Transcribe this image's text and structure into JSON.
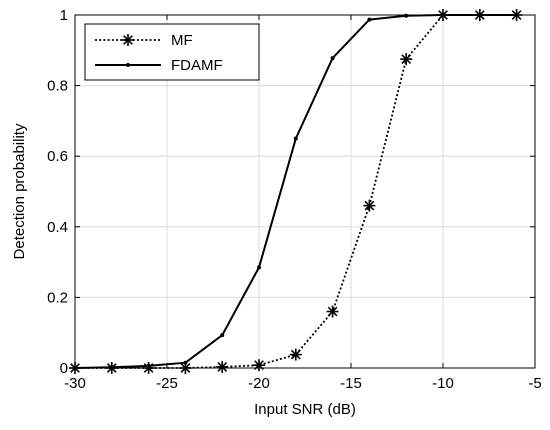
{
  "chart_data": {
    "type": "line",
    "xlabel": "Input SNR (dB)",
    "ylabel": "Detection probability",
    "xlim": [
      -30,
      -5
    ],
    "ylim": [
      0,
      1
    ],
    "xticks": [
      "-30",
      "-25",
      "-20",
      "-15",
      "-10",
      "-5"
    ],
    "yticks": [
      "0",
      "0.2",
      "0.4",
      "0.6",
      "0.8",
      "1"
    ],
    "grid": true,
    "legend_position": "top-left",
    "series": [
      {
        "name": "MF",
        "style": "dotted",
        "marker": "asterisk",
        "color": "#000000",
        "x": [
          -30,
          -28,
          -26,
          -24,
          -22,
          -20,
          -18,
          -16,
          -14,
          -12,
          -10,
          -8,
          -6
        ],
        "y": [
          0.0,
          0.0,
          0.0,
          0.0,
          0.003,
          0.008,
          0.038,
          0.16,
          0.46,
          0.875,
          1.0,
          1.0,
          1.0
        ]
      },
      {
        "name": "FDAMF",
        "style": "solid",
        "marker": "dot",
        "color": "#000000",
        "x": [
          -30,
          -28,
          -26,
          -24,
          -22,
          -20,
          -18,
          -16,
          -14,
          -12,
          -10,
          -8,
          -6
        ],
        "y": [
          0.0,
          0.002,
          0.006,
          0.015,
          0.093,
          0.285,
          0.65,
          0.878,
          0.987,
          0.998,
          1.0,
          1.0,
          1.0
        ]
      }
    ]
  }
}
